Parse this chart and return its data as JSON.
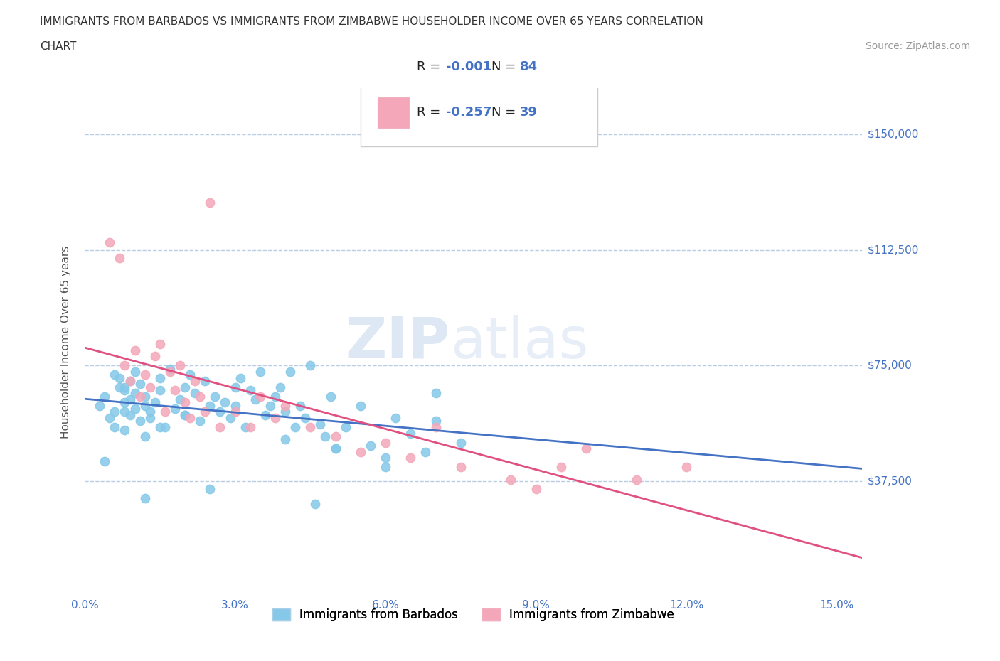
{
  "title_line1": "IMMIGRANTS FROM BARBADOS VS IMMIGRANTS FROM ZIMBABWE HOUSEHOLDER INCOME OVER 65 YEARS CORRELATION",
  "title_line2": "CHART",
  "source": "Source: ZipAtlas.com",
  "ylabel": "Householder Income Over 65 years",
  "xlim": [
    0.0,
    0.155
  ],
  "ylim": [
    0,
    165000
  ],
  "yticks": [
    0,
    37500,
    75000,
    112500,
    150000
  ],
  "ytick_labels": [
    "",
    "$37,500",
    "$75,000",
    "$112,500",
    "$150,000"
  ],
  "xticks": [
    0.0,
    0.03,
    0.06,
    0.09,
    0.12,
    0.15
  ],
  "xtick_labels": [
    "0.0%",
    "3.0%",
    "6.0%",
    "9.0%",
    "12.0%",
    "15.0%"
  ],
  "barbados_color": "#85c8e8",
  "zimbabwe_color": "#f4a7b9",
  "barbados_R": -0.001,
  "barbados_N": 84,
  "zimbabwe_R": -0.257,
  "zimbabwe_N": 39,
  "trend_color_barbados": "#4472c4",
  "trend_color_zimbabwe": "#e05080",
  "axis_color": "#4472c4",
  "grid_color": "#b8cce4",
  "watermark_zip": "ZIP",
  "watermark_atlas": "atlas",
  "background_color": "#ffffff",
  "legend_label_barbados": "Immigrants from Barbados",
  "legend_label_zimbabwe": "Immigrants from Zimbabwe",
  "barbados_x": [
    0.003,
    0.004,
    0.005,
    0.006,
    0.006,
    0.007,
    0.007,
    0.008,
    0.008,
    0.008,
    0.009,
    0.009,
    0.009,
    0.01,
    0.01,
    0.01,
    0.011,
    0.011,
    0.012,
    0.012,
    0.013,
    0.013,
    0.014,
    0.015,
    0.015,
    0.016,
    0.017,
    0.018,
    0.019,
    0.02,
    0.02,
    0.021,
    0.022,
    0.023,
    0.024,
    0.025,
    0.026,
    0.027,
    0.028,
    0.029,
    0.03,
    0.031,
    0.032,
    0.033,
    0.034,
    0.035,
    0.036,
    0.037,
    0.038,
    0.039,
    0.04,
    0.041,
    0.042,
    0.043,
    0.044,
    0.045,
    0.046,
    0.047,
    0.048,
    0.049,
    0.05,
    0.052,
    0.055,
    0.057,
    0.06,
    0.062,
    0.065,
    0.068,
    0.07,
    0.075,
    0.004,
    0.006,
    0.008,
    0.012,
    0.015,
    0.02,
    0.025,
    0.03,
    0.04,
    0.05,
    0.06,
    0.07,
    0.008,
    0.012
  ],
  "barbados_y": [
    62000,
    65000,
    58000,
    72000,
    55000,
    68000,
    71000,
    60000,
    67000,
    63000,
    70000,
    59000,
    64000,
    66000,
    61000,
    73000,
    57000,
    69000,
    62000,
    65000,
    60000,
    58000,
    63000,
    71000,
    67000,
    55000,
    74000,
    61000,
    64000,
    68000,
    59000,
    72000,
    66000,
    57000,
    70000,
    62000,
    65000,
    60000,
    63000,
    58000,
    68000,
    71000,
    55000,
    67000,
    64000,
    73000,
    59000,
    62000,
    65000,
    68000,
    60000,
    73000,
    55000,
    62000,
    58000,
    75000,
    30000,
    56000,
    52000,
    65000,
    48000,
    55000,
    62000,
    49000,
    45000,
    58000,
    53000,
    47000,
    57000,
    50000,
    44000,
    60000,
    68000,
    52000,
    55000,
    59000,
    35000,
    62000,
    51000,
    48000,
    42000,
    66000,
    54000,
    32000
  ],
  "zimbabwe_x": [
    0.005,
    0.007,
    0.008,
    0.009,
    0.01,
    0.011,
    0.012,
    0.013,
    0.014,
    0.015,
    0.016,
    0.017,
    0.018,
    0.019,
    0.02,
    0.021,
    0.022,
    0.023,
    0.024,
    0.025,
    0.027,
    0.03,
    0.033,
    0.035,
    0.038,
    0.04,
    0.045,
    0.05,
    0.055,
    0.06,
    0.065,
    0.07,
    0.075,
    0.085,
    0.09,
    0.095,
    0.1,
    0.11,
    0.12
  ],
  "zimbabwe_y": [
    115000,
    110000,
    75000,
    70000,
    80000,
    65000,
    72000,
    68000,
    78000,
    82000,
    60000,
    73000,
    67000,
    75000,
    63000,
    58000,
    70000,
    65000,
    60000,
    128000,
    55000,
    60000,
    55000,
    65000,
    58000,
    62000,
    55000,
    52000,
    47000,
    50000,
    45000,
    55000,
    42000,
    38000,
    35000,
    42000,
    48000,
    38000,
    42000
  ]
}
